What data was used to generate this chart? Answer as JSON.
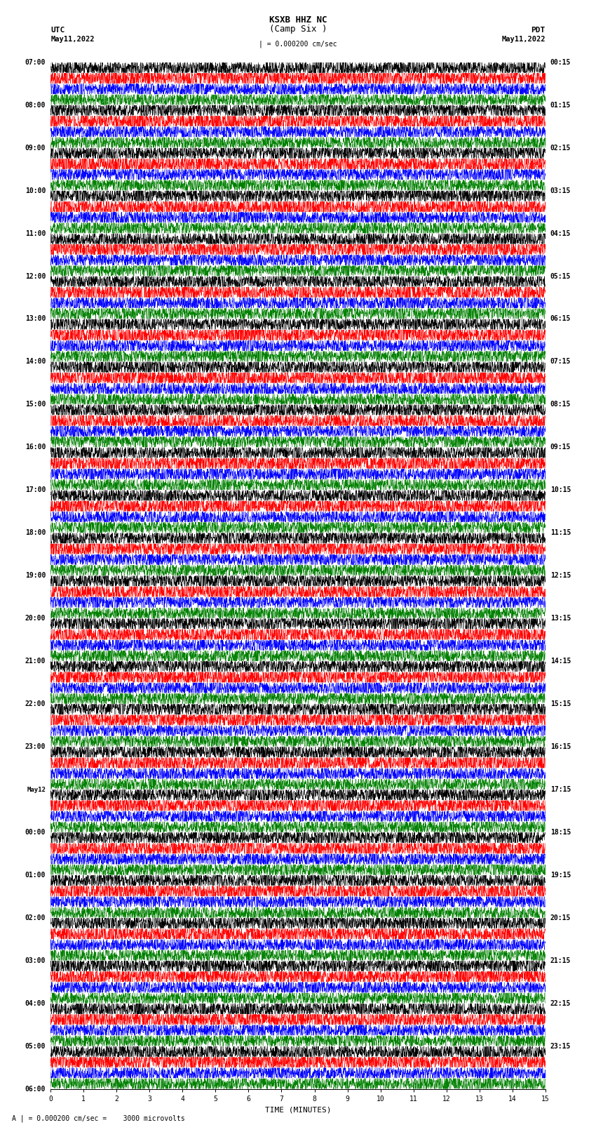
{
  "title_line1": "KSXB HHZ NC",
  "title_line2": "(Camp Six )",
  "scale_label": "| = 0.000200 cm/sec",
  "bottom_text": "A | = 0.000200 cm/sec =    3000 microvolts",
  "utc_label": "UTC",
  "pdt_label": "PDT",
  "date_left": "May11,2022",
  "date_right": "May11,2022",
  "xlabel": "TIME (MINUTES)",
  "xlim": [
    0,
    15
  ],
  "xticks": [
    0,
    1,
    2,
    3,
    4,
    5,
    6,
    7,
    8,
    9,
    10,
    11,
    12,
    13,
    14,
    15
  ],
  "colors": [
    "black",
    "red",
    "blue",
    "green"
  ],
  "background_color": "white",
  "n_hours": 24,
  "traces_per_hour": 4,
  "left_hour_labels": [
    "07:00",
    "08:00",
    "09:00",
    "10:00",
    "11:00",
    "12:00",
    "13:00",
    "14:00",
    "15:00",
    "16:00",
    "17:00",
    "18:00",
    "19:00",
    "20:00",
    "21:00",
    "22:00",
    "23:00",
    "May12",
    "00:00",
    "01:00",
    "02:00",
    "03:00",
    "04:00",
    "05:00",
    "06:00"
  ],
  "left_hour_indices": [
    0,
    4,
    8,
    12,
    16,
    20,
    24,
    28,
    32,
    36,
    40,
    44,
    48,
    52,
    56,
    60,
    64,
    68,
    72,
    76,
    80,
    84,
    88,
    92,
    96
  ],
  "right_hour_labels": [
    "00:15",
    "01:15",
    "02:15",
    "03:15",
    "04:15",
    "05:15",
    "06:15",
    "07:15",
    "08:15",
    "09:15",
    "10:15",
    "11:15",
    "12:15",
    "13:15",
    "14:15",
    "15:15",
    "16:15",
    "17:15",
    "18:15",
    "19:15",
    "20:15",
    "21:15",
    "22:15",
    "23:15"
  ],
  "right_hour_indices": [
    0,
    4,
    8,
    12,
    16,
    20,
    24,
    28,
    32,
    36,
    40,
    44,
    48,
    52,
    56,
    60,
    64,
    68,
    72,
    76,
    80,
    84,
    88,
    92
  ],
  "n_samples": 2700,
  "base_amplitude": 0.004,
  "spike_amplitude": 0.012
}
